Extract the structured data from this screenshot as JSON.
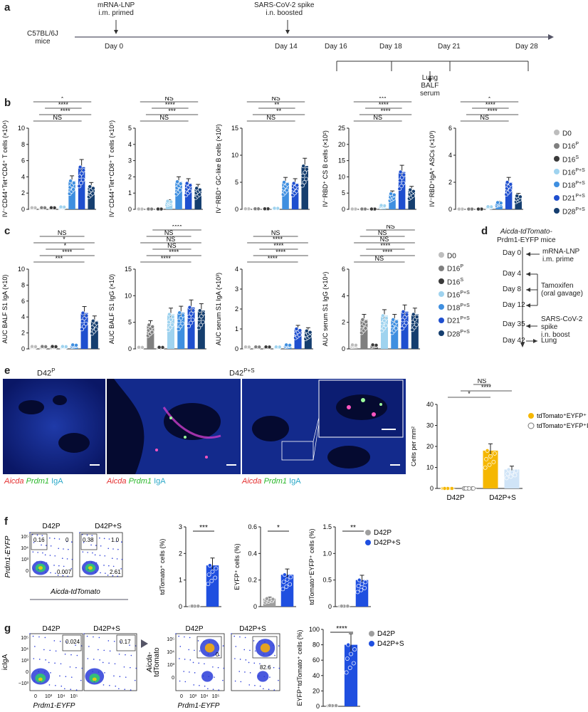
{
  "panel_labels": {
    "a": "a",
    "b": "b",
    "c": "c",
    "d": "d",
    "e": "e",
    "f": "f",
    "g": "g"
  },
  "panel_a": {
    "mice": [
      "C57BL/6J",
      "mice"
    ],
    "prime": [
      "mRNA-LNP",
      "i.m. primed"
    ],
    "boost": [
      "SARS-CoV-2 spike",
      "i.n. boosted"
    ],
    "days_main": [
      "Day 0",
      "Day 14"
    ],
    "days_sample": [
      "Day 16",
      "Day 18",
      "Day 21",
      "Day 28"
    ],
    "harvest": [
      "Lung",
      "BALF",
      "serum"
    ]
  },
  "legend_groups": {
    "labels": [
      "D0",
      "D16",
      "D16",
      "D16",
      "D18",
      "D21",
      "D28"
    ],
    "sups": [
      "",
      "P",
      "S",
      "P+S",
      "P+S",
      "P+S",
      "P+S"
    ],
    "colors": [
      "#bdbdbd",
      "#7f7f7f",
      "#3a3a3a",
      "#9fd3ef",
      "#3f8fe0",
      "#1f4fcf",
      "#153e6f"
    ]
  },
  "panel_b": {
    "charts": [
      {
        "ylabel": "IV⁻CD44⁺Tet⁺CD4⁺ T cells (×10⁴)",
        "yticks": [
          "0",
          "2",
          "4",
          "6",
          "8",
          "10"
        ],
        "ymax": 10,
        "means": [
          0.2,
          0.2,
          0.2,
          0.3,
          3.5,
          5.2,
          2.8
        ],
        "sig": [
          {
            "t": "NS"
          },
          {
            "t": "****"
          },
          {
            "t": "****"
          },
          {
            "t": "*"
          },
          {
            "t": "***"
          }
        ]
      },
      {
        "ylabel": "IV⁻CD44⁺Tet⁺CD8⁺ T cells (×10⁵)",
        "yticks": [
          "0",
          "1",
          "2",
          "3",
          "4",
          "5"
        ],
        "ymax": 5,
        "means": [
          0.02,
          0.02,
          0.02,
          0.5,
          1.7,
          1.6,
          1.3
        ],
        "sig": [
          {
            "t": "NS"
          },
          {
            "t": "***"
          },
          {
            "t": "****"
          },
          {
            "t": "NS"
          },
          {
            "t": "NS"
          }
        ]
      },
      {
        "ylabel": "IV⁻RBD⁺ GC-like B cells (×10²)",
        "yticks": [
          "0",
          "5",
          "10",
          "15"
        ],
        "ymax": 15,
        "means": [
          0.1,
          0.1,
          0.1,
          0.2,
          5.0,
          4.8,
          8.0
        ],
        "sig": [
          {
            "t": "NS"
          },
          {
            "t": "**"
          },
          {
            "t": "**"
          },
          {
            "t": "NS"
          }
        ]
      },
      {
        "ylabel": "IV⁻RBD⁺ CS B cells (×10²)",
        "yticks": [
          "0",
          "5",
          "10",
          "15",
          "20",
          "25"
        ],
        "ymax": 25,
        "means": [
          0.1,
          0.1,
          0.1,
          1.2,
          4.8,
          11.5,
          6.0
        ],
        "sig": [
          {
            "t": "NS"
          },
          {
            "t": "****"
          },
          {
            "t": "****"
          },
          {
            "t": "***"
          }
        ]
      },
      {
        "ylabel": "IV⁻RBD⁺IgA⁺ ASCs (×10³)",
        "yticks": [
          "0",
          "2",
          "4",
          "6"
        ],
        "ymax": 6,
        "means": [
          0.02,
          0.02,
          0.02,
          0.2,
          0.5,
          2.0,
          1.0
        ],
        "sig": [
          {
            "t": "NS"
          },
          {
            "t": "****"
          },
          {
            "t": "****"
          },
          {
            "t": "*"
          }
        ]
      }
    ]
  },
  "panel_c": {
    "charts": [
      {
        "ylabel": "AUC BALF S1 IgA (×10)",
        "yticks": [
          "0",
          "2",
          "4",
          "6",
          "8",
          "10"
        ],
        "ymax": 10,
        "means": [
          0.3,
          0.3,
          0.3,
          0.3,
          0.5,
          4.5,
          3.5
        ],
        "sig": [
          {
            "t": "***"
          },
          {
            "t": "****"
          },
          {
            "t": "*"
          },
          {
            "t": "*"
          },
          {
            "t": "NS"
          }
        ]
      },
      {
        "ylabel": "AUC BALF S1 IgG (×10)",
        "yticks": [
          "0",
          "5",
          "10",
          "15"
        ],
        "ymax": 15,
        "means": [
          0.3,
          4.5,
          0.3,
          6.5,
          6.8,
          7.8,
          7.2
        ],
        "sig": [
          {
            "t": "****"
          },
          {
            "t": "****"
          },
          {
            "t": "NS"
          },
          {
            "t": "NS"
          },
          {
            "t": "NS"
          },
          {
            "t": "****"
          }
        ]
      },
      {
        "ylabel": "AUC serum S1 IgA (×10³)",
        "yticks": [
          "0",
          "1",
          "2",
          "3",
          "4"
        ],
        "ymax": 4,
        "means": [
          0.1,
          0.1,
          0.1,
          0.1,
          0.2,
          1.0,
          0.9
        ],
        "sig": [
          {
            "t": "****"
          },
          {
            "t": "****"
          },
          {
            "t": "****"
          },
          {
            "t": "****"
          },
          {
            "t": "NS"
          }
        ]
      },
      {
        "ylabel": "AUC serum S1 IgG (×10⁴)",
        "yticks": [
          "0",
          "2",
          "4",
          "6"
        ],
        "ymax": 6,
        "means": [
          0.3,
          2.2,
          0.3,
          2.5,
          2.2,
          2.8,
          2.6
        ],
        "sig": [
          {
            "t": "NS"
          },
          {
            "t": "****"
          },
          {
            "t": "****"
          },
          {
            "t": "NS"
          },
          {
            "t": "NS"
          },
          {
            "t": "NS"
          }
        ]
      }
    ]
  },
  "panel_d": {
    "title": [
      "Aicda-tdTomato-",
      "Prdm1-EYFP mice"
    ],
    "days": [
      "Day 0",
      "Day 4",
      "Day 8",
      "Day 12",
      "Day 35",
      "Day 42"
    ],
    "events": [
      "mRNA-LNP",
      "i.m. prime",
      "Tamoxifen",
      "(oral gavage)",
      "SARS-CoV-2",
      "spike",
      "i.n. boost",
      "Lung"
    ]
  },
  "panel_e": {
    "image_titles": [
      "D42",
      "D42"
    ],
    "image_sups": [
      "P",
      "P+S"
    ],
    "stain": [
      "Aicda",
      "Prdm1",
      "IgA"
    ],
    "chart": {
      "ylabel": "Cells per mm²",
      "yticks": [
        "0",
        "10",
        "20",
        "30",
        "40"
      ],
      "ymax": 40,
      "groups": [
        "D42",
        "D42"
      ],
      "group_sups": [
        "P",
        "P+S"
      ],
      "legend": [
        "tdTomato⁺EYFP⁺",
        "tdTomato⁺EYFP⁺IgA⁺"
      ],
      "means": [
        0,
        0,
        18,
        9
      ],
      "sig": [
        "*",
        "****",
        "NS",
        "****",
        "*"
      ]
    }
  },
  "panel_f": {
    "flow": {
      "titles": [
        "D42",
        "D42"
      ],
      "sups": [
        "P",
        "P+S"
      ],
      "gates_p": [
        "0.16",
        "0",
        "0.007"
      ],
      "gates_ps": [
        "0.38",
        "1.0",
        "2.61"
      ],
      "xlabel": "Aicda-tdTomato",
      "ylabel": "Prdm1-EYFP",
      "yticks": [
        "10⁵",
        "10⁴",
        "10³",
        "0"
      ]
    },
    "charts": [
      {
        "ylabel": "tdTomato⁺ cells (%)",
        "yticks": [
          "0",
          "1",
          "2",
          "3"
        ],
        "ymax": 3,
        "means": [
          0.02,
          1.55
        ],
        "sig": "***"
      },
      {
        "ylabel": "EYFP⁺ cells (%)",
        "yticks": [
          "0",
          "0.2",
          "0.4",
          "0.6"
        ],
        "ymax": 0.6,
        "means": [
          0.06,
          0.24
        ],
        "sig": "*"
      },
      {
        "ylabel": "tdTomato⁺EYFP⁺ cells (%)",
        "yticks": [
          "0",
          "0.5",
          "1.0",
          "1.5"
        ],
        "ymax": 1.5,
        "means": [
          0.01,
          0.5
        ],
        "sig": "**"
      }
    ],
    "legend": [
      "D42",
      "D42"
    ],
    "legend_sups": [
      "P",
      "P+S"
    ]
  },
  "panel_g": {
    "flow1": {
      "titles": [
        "D42",
        "D42"
      ],
      "sups": [
        "P",
        "P+S"
      ],
      "gates": [
        "0.024",
        "0.17"
      ],
      "xlabel": "Prdm1-EYFP",
      "ylabel": "icIgA",
      "yticks": [
        "10⁵",
        "10⁴",
        "10³",
        "0",
        "−10³"
      ],
      "xticks": [
        "0",
        "10³",
        "10⁴",
        "10⁵"
      ]
    },
    "flow2": {
      "titles": [
        "D42",
        "D42"
      ],
      "sups": [
        "P",
        "P+S"
      ],
      "gates": [
        "0",
        "82.6"
      ],
      "xlabel": "Prdm1-EYFP",
      "ylabel": [
        "Aicda-",
        "tdTomato"
      ],
      "yticks": [
        "10⁵",
        "10⁴",
        "10³",
        "0"
      ],
      "xticks": [
        "0",
        "10³",
        "10⁴",
        "10⁵"
      ]
    },
    "chart": {
      "ylabel": "EYFP⁺tdTomato⁺ cells (%)",
      "yticks": [
        "0",
        "20",
        "40",
        "60",
        "80",
        "100"
      ],
      "ymax": 100,
      "means": [
        1,
        80
      ],
      "sig": "****"
    },
    "legend": [
      "D42",
      "D42"
    ],
    "legend_sups": [
      "P",
      "P+S"
    ]
  },
  "chart_data": [
    {
      "type": "bar",
      "panel": "b1",
      "categories": [
        "D0",
        "D16P",
        "D16S",
        "D16P+S",
        "D18P+S",
        "D21P+S",
        "D28P+S"
      ],
      "values": [
        0.2,
        0.2,
        0.2,
        0.3,
        3.5,
        5.2,
        2.8
      ],
      "ylabel": "IV⁻CD44⁺Tet⁺CD4⁺ T cells (×10⁴)",
      "ylim": [
        0,
        10
      ]
    },
    {
      "type": "bar",
      "panel": "b2",
      "categories": [
        "D0",
        "D16P",
        "D16S",
        "D16P+S",
        "D18P+S",
        "D21P+S",
        "D28P+S"
      ],
      "values": [
        0.02,
        0.02,
        0.02,
        0.5,
        1.7,
        1.6,
        1.3
      ],
      "ylabel": "IV⁻CD44⁺Tet⁺CD8⁺ T cells (×10⁵)",
      "ylim": [
        0,
        5
      ]
    },
    {
      "type": "bar",
      "panel": "b3",
      "categories": [
        "D0",
        "D16P",
        "D16S",
        "D16P+S",
        "D18P+S",
        "D21P+S",
        "D28P+S"
      ],
      "values": [
        0.1,
        0.1,
        0.1,
        0.2,
        5.0,
        4.8,
        8.0
      ],
      "ylabel": "IV⁻RBD⁺ GC-like B cells (×10²)",
      "ylim": [
        0,
        15
      ]
    },
    {
      "type": "bar",
      "panel": "b4",
      "categories": [
        "D0",
        "D16P",
        "D16S",
        "D16P+S",
        "D18P+S",
        "D21P+S",
        "D28P+S"
      ],
      "values": [
        0.1,
        0.1,
        0.1,
        1.2,
        4.8,
        11.5,
        6.0
      ],
      "ylabel": "IV⁻RBD⁺ CS B cells (×10²)",
      "ylim": [
        0,
        25
      ]
    },
    {
      "type": "bar",
      "panel": "b5",
      "categories": [
        "D0",
        "D16P",
        "D16S",
        "D16P+S",
        "D18P+S",
        "D21P+S",
        "D28P+S"
      ],
      "values": [
        0.02,
        0.02,
        0.02,
        0.2,
        0.5,
        2.0,
        1.0
      ],
      "ylabel": "IV⁻RBD⁺IgA⁺ ASCs (×10³)",
      "ylim": [
        0,
        6
      ]
    },
    {
      "type": "bar",
      "panel": "c1",
      "categories": [
        "D0",
        "D16P",
        "D16S",
        "D16P+S",
        "D18P+S",
        "D21P+S",
        "D28P+S"
      ],
      "values": [
        0.3,
        0.3,
        0.3,
        0.3,
        0.5,
        4.5,
        3.5
      ],
      "ylabel": "AUC BALF S1 IgA (×10)",
      "ylim": [
        0,
        10
      ]
    },
    {
      "type": "bar",
      "panel": "c2",
      "categories": [
        "D0",
        "D16P",
        "D16S",
        "D16P+S",
        "D18P+S",
        "D21P+S",
        "D28P+S"
      ],
      "values": [
        0.3,
        4.5,
        0.3,
        6.5,
        6.8,
        7.8,
        7.2
      ],
      "ylabel": "AUC BALF S1 IgG (×10)",
      "ylim": [
        0,
        15
      ]
    },
    {
      "type": "bar",
      "panel": "c3",
      "categories": [
        "D0",
        "D16P",
        "D16S",
        "D16P+S",
        "D18P+S",
        "D21P+S",
        "D28P+S"
      ],
      "values": [
        0.1,
        0.1,
        0.1,
        0.1,
        0.2,
        1.0,
        0.9
      ],
      "ylabel": "AUC serum S1 IgA (×10³)",
      "ylim": [
        0,
        4
      ]
    },
    {
      "type": "bar",
      "panel": "c4",
      "categories": [
        "D0",
        "D16P",
        "D16S",
        "D16P+S",
        "D18P+S",
        "D21P+S",
        "D28P+S"
      ],
      "values": [
        0.3,
        2.2,
        0.3,
        2.5,
        2.2,
        2.8,
        2.6
      ],
      "ylabel": "AUC serum S1 IgG (×10⁴)",
      "ylim": [
        0,
        6
      ]
    },
    {
      "type": "bar",
      "panel": "e",
      "categories": [
        "D42P tdTomato⁺EYFP⁺",
        "D42P tdTomato⁺EYFP⁺IgA⁺",
        "D42P+S tdTomato⁺EYFP⁺",
        "D42P+S tdTomato⁺EYFP⁺IgA⁺"
      ],
      "values": [
        0,
        0,
        18,
        9
      ],
      "ylabel": "Cells per mm²",
      "ylim": [
        0,
        40
      ]
    },
    {
      "type": "bar",
      "panel": "f1",
      "categories": [
        "D42P",
        "D42P+S"
      ],
      "values": [
        0.02,
        1.55
      ],
      "ylabel": "tdTomato⁺ cells (%)",
      "ylim": [
        0,
        3
      ]
    },
    {
      "type": "bar",
      "panel": "f2",
      "categories": [
        "D42P",
        "D42P+S"
      ],
      "values": [
        0.06,
        0.24
      ],
      "ylabel": "EYFP⁺ cells (%)",
      "ylim": [
        0,
        0.6
      ]
    },
    {
      "type": "bar",
      "panel": "f3",
      "categories": [
        "D42P",
        "D42P+S"
      ],
      "values": [
        0.01,
        0.5
      ],
      "ylabel": "tdTomato⁺EYFP⁺ cells (%)",
      "ylim": [
        0,
        1.5
      ]
    },
    {
      "type": "bar",
      "panel": "g",
      "categories": [
        "D42P",
        "D42P+S"
      ],
      "values": [
        1,
        80
      ],
      "ylabel": "EYFP⁺tdTomato⁺ cells (%)",
      "ylim": [
        0,
        100
      ]
    }
  ]
}
